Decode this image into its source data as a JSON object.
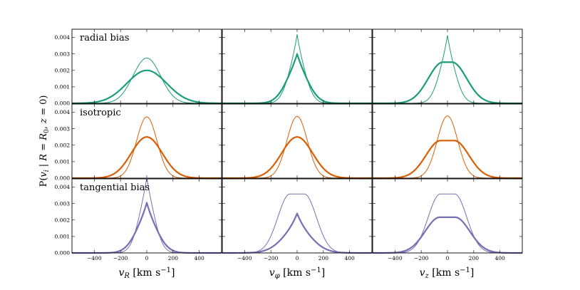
{
  "chart_data": {
    "type": "line",
    "ylabel": "P(v_i | R = R_0, z = 0)",
    "ylabel_parts": {
      "p": "P(",
      "v": "v",
      "vsub": "i",
      "mid": " | ",
      "r1": "R",
      "eq1": " = ",
      "r2": "R",
      "r2sub": "0",
      "comma": ", ",
      "z": "z",
      "eq2": " = 0)"
    },
    "xlabels": [
      {
        "sym": "v",
        "sub": "R",
        "units": " [km s",
        "exp": "−1",
        "close": "]"
      },
      {
        "sym": "v",
        "sub": "φ",
        "units": " [km s",
        "exp": "−1",
        "close": "]"
      },
      {
        "sym": "v",
        "sub": "z",
        "units": " [km s",
        "exp": "−1",
        "close": "]"
      }
    ],
    "xlim": [
      -570,
      570
    ],
    "ylim": [
      0,
      0.0045
    ],
    "xticks": [
      -400,
      -200,
      0,
      200,
      400
    ],
    "xtick_labels": [
      "−400",
      "−200",
      "0",
      "200",
      "400"
    ],
    "yticks": [
      0,
      0.001,
      0.002,
      0.003,
      0.004
    ],
    "ytick_labels": [
      "0.000",
      "0.001",
      "0.002",
      "0.003",
      "0.004"
    ],
    "rows": [
      {
        "title": "radial bias",
        "color": "#1b9e77",
        "panels": [
          {
            "thick": {
              "peak": 0.002,
              "sigma": 152,
              "flat": 0
            },
            "thin": {
              "peak": 0.00275,
              "sigma": 105,
              "flat": 0
            }
          },
          {
            "thick": {
              "peak": 0.003,
              "sigma": 88,
              "flat": 0,
              "cusp": 0.42
            },
            "thin": {
              "peak": 0.00418,
              "sigma": 68,
              "flat": 0,
              "cusp": 0.45
            }
          },
          {
            "thick": {
              "peak": 0.0025,
              "sigma": 112,
              "flat": 34
            },
            "thin": {
              "peak": 0.00412,
              "sigma": 68,
              "flat": 0,
              "cusp": 0.45
            }
          }
        ]
      },
      {
        "title": "isotropic",
        "color": "#d95f02",
        "panels": [
          {
            "thick": {
              "peak": 0.0025,
              "sigma": 118,
              "flat": 0
            },
            "thin": {
              "peak": 0.00372,
              "sigma": 78,
              "flat": 0
            }
          },
          {
            "thick": {
              "peak": 0.0025,
              "sigma": 118,
              "flat": 0
            },
            "thin": {
              "peak": 0.00375,
              "sigma": 78,
              "flat": 0
            }
          },
          {
            "thick": {
              "peak": 0.00228,
              "sigma": 112,
              "flat": 52
            },
            "thin": {
              "peak": 0.00378,
              "sigma": 78,
              "flat": 0
            }
          }
        ]
      },
      {
        "title": "tangential bias",
        "color": "#7570b3",
        "panels": [
          {
            "thick": {
              "peak": 0.00305,
              "sigma": 88,
              "flat": 0,
              "cusp": 0.45
            },
            "thin": {
              "peak": 0.00458,
              "sigma": 66,
              "flat": 0,
              "cusp": 0.4
            }
          },
          {
            "thick": {
              "peak": 0.0024,
              "sigma": 118,
              "flat": 0,
              "cusp": 0.55
            },
            "thin": {
              "peak": 0.00358,
              "sigma": 92,
              "flat": 55
            }
          },
          {
            "thick": {
              "peak": 0.00217,
              "sigma": 112,
              "flat": 58
            },
            "thin": {
              "peak": 0.00358,
              "sigma": 92,
              "flat": 55
            }
          }
        ]
      }
    ]
  }
}
